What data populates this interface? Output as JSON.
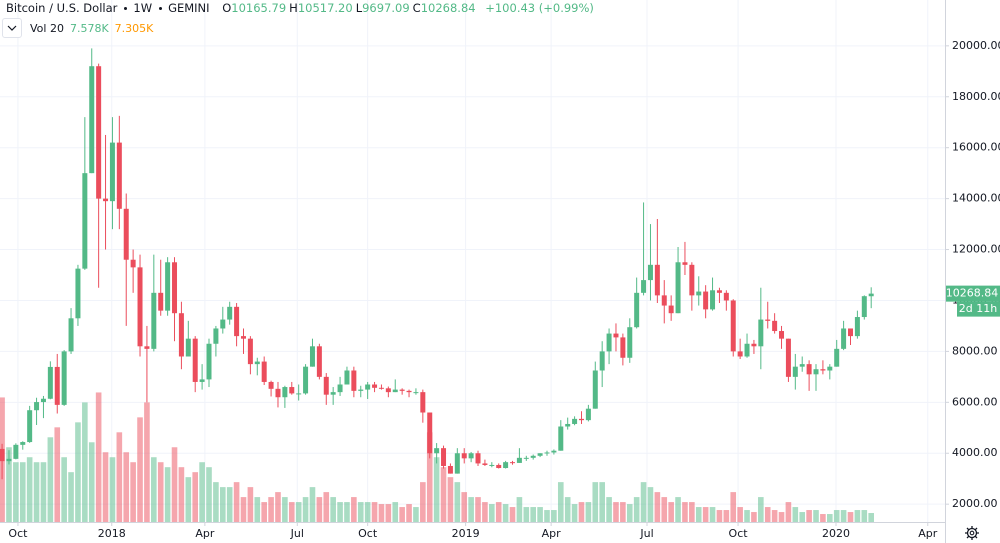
{
  "chart_data": {
    "type": "candlestick",
    "header": {
      "symbol": "Bitcoin / U.S. Dollar",
      "interval": "1W",
      "exchange": "GEMINI",
      "ohlc": [
        {
          "key": "O",
          "label": "10165.79"
        },
        {
          "key": "H",
          "label": "10517.20"
        },
        {
          "key": "L",
          "label": "9697.09"
        },
        {
          "key": "C",
          "label": "10268.84"
        }
      ],
      "change": "+100.43 (+0.99%)"
    },
    "legend": {
      "name": "Vol 20",
      "value": "7.578K",
      "ma": "7.305K"
    },
    "countdown": "2d 11h",
    "up_color": "#53b987",
    "down_color": "#eb4d5c",
    "grid": true,
    "series": [
      {
        "name": "Bitcoin / U.S. Dollar",
        "open": [
          4170,
          3690,
          3780,
          4330,
          4440,
          5690,
          6010,
          6140,
          7390,
          5900,
          8000,
          9300,
          11250,
          15000,
          19200,
          14000,
          13900,
          16200,
          13600,
          11600,
          11300,
          8200,
          8100,
          10300,
          9600,
          11500,
          9500,
          7800,
          8500,
          6800,
          6900,
          8300,
          8900,
          9250,
          9750,
          8600,
          8500,
          7500,
          7600,
          6800,
          6530,
          6200,
          6600,
          6350,
          6350,
          7400,
          8200,
          7000,
          6300,
          6400,
          6700,
          7250,
          6450,
          6500,
          6700,
          6570,
          6550,
          6400,
          6500,
          6450,
          6400,
          6400,
          5600,
          4000,
          4200,
          3500,
          3200,
          4000,
          3800,
          4000,
          3600,
          3540,
          3540,
          3420,
          3650,
          3620,
          3820,
          3820,
          3900,
          4000,
          4030,
          4100,
          5050,
          5150,
          5350,
          5300,
          5750,
          7250,
          8000,
          8700,
          8550,
          7750,
          8950,
          10300,
          10800,
          11400,
          10200,
          9800,
          9500,
          11500,
          11400,
          10200,
          10350,
          9650,
          10400,
          10300,
          10000,
          8000,
          7800,
          8300,
          8200,
          9250,
          9200,
          8800,
          8500,
          7000,
          7400,
          7500,
          7100,
          7300,
          7250,
          7400,
          8100,
          8900,
          8600,
          9350,
          10165.79
        ],
        "high": [
          4370,
          4120,
          4390,
          4470,
          5860,
          6180,
          6250,
          7610,
          7900,
          8050,
          9700,
          11400,
          17200,
          19900,
          19300,
          16500,
          17200,
          17250,
          14200,
          12000,
          11800,
          9000,
          11800,
          11600,
          11700,
          11700,
          9950,
          9200,
          8600,
          7500,
          8500,
          9000,
          9750,
          9950,
          9900,
          8900,
          8600,
          7750,
          7800,
          6850,
          6800,
          6650,
          6800,
          6700,
          7500,
          8500,
          8300,
          7150,
          6600,
          7000,
          7400,
          7400,
          6650,
          6800,
          6800,
          6700,
          6620,
          6900,
          6550,
          6500,
          6550,
          6500,
          5600,
          4400,
          4300,
          3600,
          4200,
          4200,
          4050,
          4100,
          3750,
          3650,
          3600,
          3700,
          3700,
          4200,
          3900,
          3950,
          4000,
          4100,
          4150,
          5300,
          5400,
          5450,
          5650,
          5900,
          7600,
          8400,
          8900,
          9100,
          8700,
          9300,
          10900,
          13850,
          13000,
          13200,
          10800,
          10200,
          12100,
          12300,
          11500,
          10950,
          10600,
          10900,
          10500,
          10400,
          10050,
          8500,
          8700,
          8450,
          10500,
          9950,
          9500,
          9000,
          8500,
          7900,
          7800,
          7650,
          7500,
          7650,
          7500,
          8450,
          9200,
          8900,
          9600,
          10200,
          10517.2
        ],
        "low": [
          2980,
          3560,
          3760,
          4140,
          4410,
          5110,
          5380,
          6120,
          5560,
          5860,
          7900,
          9000,
          11200,
          15000,
          10500,
          12000,
          12800,
          12800,
          9000,
          10300,
          7800,
          6000,
          8000,
          9400,
          9400,
          8400,
          7300,
          7800,
          6400,
          6500,
          6600,
          7800,
          8700,
          9050,
          8200,
          7900,
          7100,
          7060,
          6680,
          6230,
          5800,
          5780,
          6300,
          6070,
          6300,
          7400,
          6900,
          5900,
          5900,
          6250,
          6700,
          6200,
          6200,
          6130,
          6400,
          6500,
          6200,
          6400,
          6300,
          6200,
          6300,
          5200,
          3800,
          3600,
          3400,
          3200,
          3200,
          3600,
          3650,
          3500,
          3500,
          3450,
          3400,
          3400,
          3550,
          3620,
          3700,
          3750,
          3850,
          3900,
          3950,
          4100,
          4930,
          5100,
          5150,
          5250,
          5750,
          6600,
          7500,
          8000,
          7450,
          7550,
          8900,
          10200,
          10000,
          9900,
          9100,
          9200,
          9500,
          11000,
          9600,
          9800,
          9300,
          9600,
          9900,
          9600,
          7800,
          7700,
          7750,
          7900,
          7300,
          8900,
          8700,
          8100,
          6800,
          6500,
          7200,
          6450,
          6450,
          7100,
          6900,
          7400,
          8050,
          8250,
          8500,
          9250,
          9697.09
        ],
        "close": [
          3690,
          3780,
          4330,
          4440,
          5690,
          6010,
          6140,
          7390,
          5900,
          8000,
          9300,
          11250,
          15000,
          19200,
          14000,
          13900,
          16200,
          13600,
          11600,
          11300,
          8200,
          8100,
          10300,
          9600,
          11500,
          9500,
          7800,
          8500,
          6800,
          6900,
          8300,
          8900,
          9250,
          9750,
          8600,
          8500,
          7500,
          7600,
          6800,
          6530,
          6200,
          6600,
          6350,
          6350,
          7400,
          8200,
          7000,
          6300,
          6400,
          6700,
          7250,
          6450,
          6500,
          6700,
          6570,
          6550,
          6400,
          6500,
          6450,
          6400,
          6400,
          5600,
          4000,
          4200,
          3500,
          3200,
          4000,
          3800,
          4000,
          3600,
          3540,
          3540,
          3420,
          3650,
          3620,
          3820,
          3820,
          3900,
          4000,
          4030,
          4100,
          5050,
          5150,
          5350,
          5300,
          5750,
          7250,
          8000,
          8700,
          8550,
          7750,
          8950,
          10300,
          10800,
          11400,
          10200,
          9800,
          9500,
          11500,
          11400,
          10200,
          10350,
          9650,
          10400,
          10300,
          10000,
          8000,
          7800,
          8300,
          8200,
          9250,
          9200,
          8800,
          8500,
          7000,
          7400,
          7500,
          7100,
          7300,
          7250,
          7400,
          8100,
          8900,
          8600,
          9350,
          10168.41,
          10268.84
        ],
        "volume": [
          105000,
          63000,
          50400,
          50400,
          54600,
          50400,
          50400,
          71400,
          79800,
          54600,
          42000,
          84000,
          100800,
          67200,
          109200,
          58800,
          54600,
          75600,
          58800,
          50400,
          88200,
          100800,
          54600,
          50400,
          46200,
          63000,
          46200,
          37800,
          42000,
          50400,
          46200,
          33600,
          29400,
          29400,
          33600,
          21000,
          29400,
          21000,
          16800,
          21000,
          25200,
          21000,
          16800,
          16800,
          21000,
          29400,
          21000,
          25200,
          21000,
          16800,
          16800,
          21000,
          16800,
          16800,
          16800,
          15120,
          15120,
          16800,
          12600,
          15120,
          12600,
          33600,
          75600,
          54600,
          46200,
          37800,
          33600,
          25200,
          21000,
          21000,
          16800,
          15120,
          16800,
          15120,
          12600,
          21000,
          12600,
          12600,
          12600,
          10080,
          10080,
          33600,
          21000,
          15120,
          16800,
          16800,
          33600,
          33600,
          21000,
          16800,
          16800,
          15120,
          21000,
          33600,
          29400,
          25200,
          21000,
          16800,
          21000,
          16800,
          16800,
          12600,
          12600,
          12600,
          10080,
          10080,
          25200,
          12600,
          10080,
          8400,
          21000,
          12600,
          10080,
          8400,
          16800,
          12600,
          8400,
          10080,
          10080,
          6720,
          6720,
          10080,
          10080,
          8400,
          10080,
          10080,
          7578
        ]
      }
    ],
    "ylim": [
      1300,
      21800
    ],
    "yticks": [
      {
        "value": 2000,
        "label": "2000.00"
      },
      {
        "value": 4000,
        "label": "4000.00"
      },
      {
        "value": 6000,
        "label": "6000.00"
      },
      {
        "value": 8000,
        "label": "8000.00"
      },
      {
        "value": 10000,
        "label": "10000.00"
      },
      {
        "value": 12000,
        "label": "12000.00"
      },
      {
        "value": 14000,
        "label": "14000.00"
      },
      {
        "value": 16000,
        "label": "16000.00"
      },
      {
        "value": 18000,
        "label": "18000.00"
      },
      {
        "value": 20000,
        "label": "20000.00"
      }
    ],
    "y2lim": [
      0,
      440000
    ],
    "xlim": [
      -0.3,
      136.7
    ],
    "xticks": [
      {
        "value": 2.3,
        "label": "Oct"
      },
      {
        "value": 15.9,
        "label": "2018"
      },
      {
        "value": 29.4,
        "label": "Apr"
      },
      {
        "value": 42.8,
        "label": "Jul"
      },
      {
        "value": 53.0,
        "label": "Oct"
      },
      {
        "value": 67.2,
        "label": "2019"
      },
      {
        "value": 79.6,
        "label": "Apr"
      },
      {
        "value": 93.5,
        "label": "Jul"
      },
      {
        "value": 106.7,
        "label": "Oct"
      },
      {
        "value": 120.9,
        "label": "2020"
      },
      {
        "value": 134.2,
        "label": "Apr"
      }
    ]
  }
}
